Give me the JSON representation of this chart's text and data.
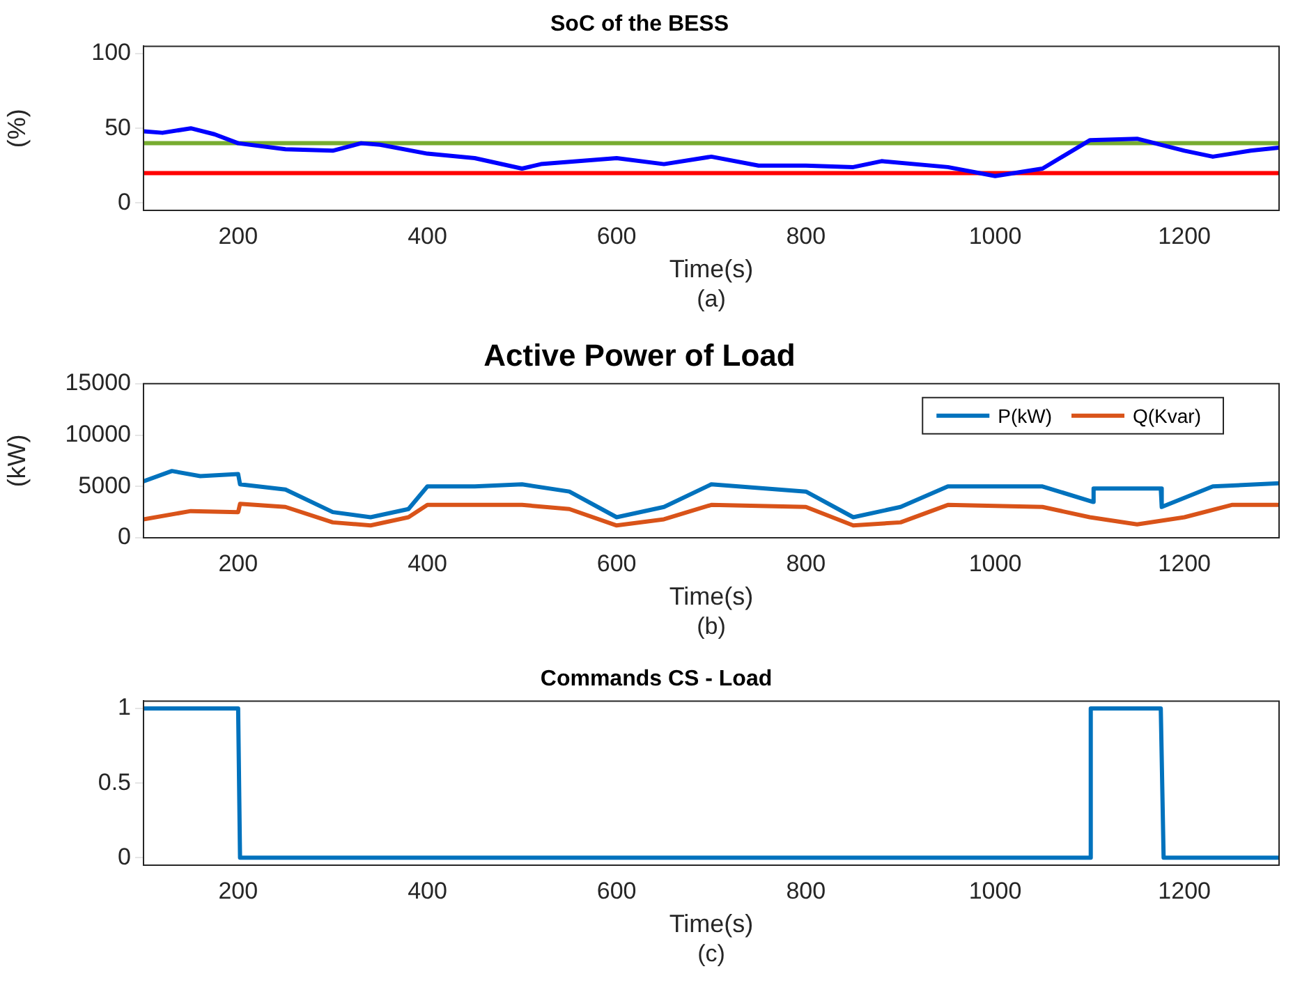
{
  "chart_data": [
    {
      "type": "line",
      "title": "SoC of the BESS",
      "xlabel": "Time(s)",
      "ylabel": "(%)",
      "xlim": [
        100,
        1300
      ],
      "xticks": [
        200,
        400,
        600,
        800,
        1000,
        1200
      ],
      "ylim": [
        -5,
        105
      ],
      "yticks": [
        0,
        50,
        100
      ],
      "grid": false,
      "legend": false,
      "marker": "none",
      "annotations": [
        "(a)"
      ],
      "series": [
        {
          "color": "#0000ff",
          "x": [
            100,
            120,
            150,
            175,
            200,
            250,
            300,
            330,
            350,
            400,
            450,
            500,
            520,
            600,
            650,
            700,
            750,
            800,
            850,
            880,
            950,
            1000,
            1050,
            1100,
            1150,
            1200,
            1230,
            1270,
            1300
          ],
          "values": [
            48,
            47,
            50,
            46,
            40,
            36,
            35,
            40,
            39,
            33,
            30,
            23,
            26,
            30,
            26,
            31,
            25,
            25,
            24,
            28,
            24,
            18,
            23,
            42,
            43,
            35,
            31,
            35,
            37
          ]
        }
      ],
      "ref_lines": [
        {
          "axis": "y",
          "value": 40,
          "color": "#77ac30"
        },
        {
          "axis": "y",
          "value": 20,
          "color": "#ff0000"
        }
      ]
    },
    {
      "type": "line",
      "title": "Active Power of Load",
      "xlabel": "Time(s)",
      "ylabel": "(kW)",
      "xlim": [
        100,
        1300
      ],
      "xticks": [
        200,
        400,
        600,
        800,
        1000,
        1200
      ],
      "ylim": [
        0,
        15000
      ],
      "yticks": [
        0,
        5000,
        10000,
        15000
      ],
      "grid": false,
      "legend": "top right",
      "marker": "none",
      "annotations": [
        "(b)"
      ],
      "series": [
        {
          "name": "P(kW)",
          "color": "#0072bd",
          "x": [
            100,
            130,
            160,
            200,
            202,
            250,
            300,
            340,
            380,
            400,
            450,
            500,
            550,
            600,
            650,
            700,
            800,
            850,
            900,
            950,
            1050,
            1103,
            1104,
            1175,
            1176,
            1230,
            1300
          ],
          "values": [
            5500,
            6500,
            6000,
            6200,
            5200,
            4700,
            2500,
            2000,
            2800,
            5000,
            5000,
            5200,
            4500,
            2000,
            3000,
            5200,
            4500,
            2000,
            3000,
            5000,
            5000,
            3500,
            4800,
            4800,
            3000,
            5000,
            5300
          ]
        },
        {
          "name": "Q(Kvar)",
          "color": "#d95319",
          "x": [
            100,
            150,
            200,
            202,
            250,
            300,
            340,
            380,
            400,
            500,
            550,
            600,
            650,
            700,
            800,
            850,
            900,
            950,
            1050,
            1100,
            1150,
            1200,
            1250,
            1300
          ],
          "values": [
            1800,
            2600,
            2500,
            3300,
            3000,
            1500,
            1200,
            2000,
            3200,
            3200,
            2800,
            1200,
            1800,
            3200,
            3000,
            1200,
            1500,
            3200,
            3000,
            2000,
            1300,
            2000,
            3200,
            3200
          ]
        }
      ]
    },
    {
      "type": "line",
      "title": "Commands CS - Load",
      "xlabel": "Time(s)",
      "xlim": [
        100,
        1300
      ],
      "xticks": [
        200,
        400,
        600,
        800,
        1000,
        1200
      ],
      "ylim": [
        -0.05,
        1.05
      ],
      "yticks": [
        0,
        0.5,
        1
      ],
      "grid": false,
      "legend": false,
      "marker": "none",
      "annotations": [
        "(c)"
      ],
      "series": [
        {
          "color": "#0072bd",
          "x": [
            100,
            200,
            202,
            1100,
            1101,
            1175,
            1178,
            1300
          ],
          "values": [
            1,
            1,
            0,
            0,
            1,
            1,
            0,
            0
          ]
        }
      ]
    }
  ]
}
